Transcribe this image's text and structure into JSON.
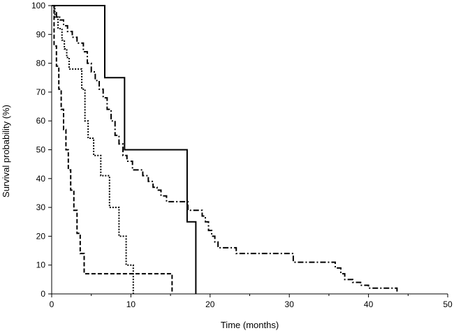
{
  "chart_data": {
    "type": "line",
    "subtype": "kaplan-meier step",
    "title": "",
    "xlabel": "Time (months)",
    "ylabel": "Survival probability (%)",
    "xlim": [
      0,
      50
    ],
    "ylim": [
      0,
      100
    ],
    "xticks": [
      0,
      10,
      20,
      30,
      40,
      50
    ],
    "yticks": [
      0,
      10,
      20,
      30,
      40,
      50,
      60,
      70,
      80,
      90,
      100
    ],
    "grid": false,
    "legend": "none",
    "series": [
      {
        "name": "solid",
        "line_style": "solid",
        "color": "#000000",
        "x": [
          0,
          6.7,
          9.2,
          17.1,
          17.6,
          18.2
        ],
        "y": [
          100,
          75,
          50,
          25,
          25,
          0
        ]
      },
      {
        "name": "dash-dot",
        "line_style": "dashdot",
        "color": "#000000",
        "x": [
          0,
          0.3,
          0.6,
          1.0,
          1.5,
          2.0,
          2.6,
          3.2,
          4.0,
          4.5,
          5.0,
          5.5,
          6.0,
          6.5,
          7.0,
          7.5,
          8.0,
          8.5,
          9.0,
          9.5,
          10.2,
          11.5,
          12.2,
          12.8,
          13.3,
          13.8,
          14.5,
          17.2,
          19.0,
          19.4,
          19.8,
          20.2,
          20.6,
          21.0,
          23.3,
          30.5,
          35.8,
          36.5,
          37.0,
          38.0,
          39.0,
          40.0,
          43.6
        ],
        "y": [
          100,
          98,
          96,
          95,
          93,
          91,
          89,
          87,
          84,
          80,
          77,
          74,
          71,
          68,
          64,
          60,
          55,
          52,
          48,
          46,
          43,
          41,
          39,
          37,
          36,
          34,
          32,
          29,
          27,
          25,
          22,
          20,
          18,
          16,
          14,
          11,
          9,
          7,
          5,
          4,
          3,
          2,
          0
        ]
      },
      {
        "name": "dotted",
        "line_style": "dotted",
        "color": "#000000",
        "x": [
          0,
          0.4,
          0.8,
          1.3,
          1.6,
          1.9,
          2.2,
          3.8,
          4.2,
          4.6,
          5.3,
          6.2,
          7.3,
          8.5,
          9.4,
          10.3
        ],
        "y": [
          100,
          96,
          92,
          88,
          85,
          82,
          78,
          71,
          60,
          54,
          48,
          41,
          30,
          20,
          10,
          0
        ]
      },
      {
        "name": "dashed",
        "line_style": "dashed",
        "color": "#000000",
        "x": [
          0,
          0.3,
          0.6,
          0.9,
          1.2,
          1.5,
          1.8,
          2.1,
          2.4,
          2.8,
          3.2,
          3.6,
          4.1,
          15.2
        ],
        "y": [
          100,
          86,
          79,
          71,
          64,
          57,
          50,
          43,
          36,
          29,
          21,
          14,
          7,
          0
        ]
      }
    ]
  }
}
